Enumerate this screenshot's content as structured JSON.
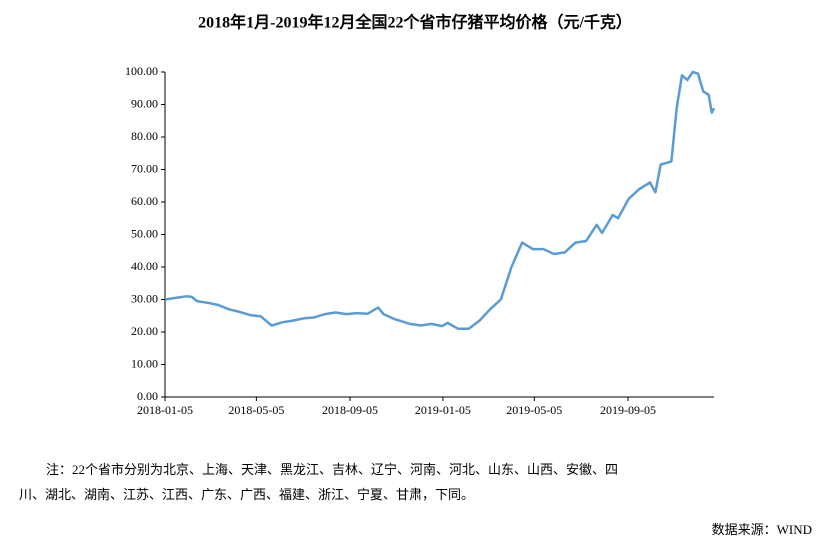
{
  "chart_data": {
    "type": "line",
    "title": "2018年1月-2019年12月全国22个省市仔猪平均价格（元/千克）",
    "x": [
      "2018-01-05",
      "2018-01-19",
      "2018-02-02",
      "2018-02-09",
      "2018-02-16",
      "2018-03-02",
      "2018-03-16",
      "2018-03-30",
      "2018-04-13",
      "2018-04-27",
      "2018-05-11",
      "2018-05-25",
      "2018-06-08",
      "2018-06-22",
      "2018-07-06",
      "2018-07-20",
      "2018-08-03",
      "2018-08-17",
      "2018-08-31",
      "2018-09-14",
      "2018-09-28",
      "2018-10-12",
      "2018-10-19",
      "2018-11-02",
      "2018-11-16",
      "2018-11-23",
      "2018-12-07",
      "2018-12-21",
      "2019-01-04",
      "2019-01-11",
      "2019-01-25",
      "2019-02-08",
      "2019-02-22",
      "2019-03-08",
      "2019-03-22",
      "2019-04-05",
      "2019-04-19",
      "2019-05-03",
      "2019-05-17",
      "2019-05-31",
      "2019-06-14",
      "2019-06-28",
      "2019-07-12",
      "2019-07-26",
      "2019-08-02",
      "2019-08-16",
      "2019-08-23",
      "2019-09-06",
      "2019-09-20",
      "2019-10-04",
      "2019-10-11",
      "2019-10-18",
      "2019-11-01",
      "2019-11-08",
      "2019-11-15",
      "2019-11-22",
      "2019-11-29",
      "2019-12-06",
      "2019-12-13",
      "2019-12-20",
      "2019-12-24",
      "2019-12-27"
    ],
    "series": [
      {
        "color": "#5b9bd5",
        "values": [
          30,
          30.5,
          31,
          30.8,
          29.5,
          29,
          28.3,
          27,
          26.2,
          25.2,
          24.8,
          22,
          23,
          23.5,
          24.2,
          24.5,
          25.5,
          26,
          25.5,
          25.8,
          25.6,
          27.5,
          25.5,
          24,
          23,
          22.5,
          22,
          22.5,
          21.8,
          22.8,
          21,
          21,
          23.5,
          27,
          30,
          40,
          47.5,
          45.5,
          45.5,
          44,
          44.5,
          47.5,
          48,
          53,
          50.5,
          56,
          55,
          61,
          64,
          66,
          63,
          71.5,
          72.5,
          89,
          99,
          97.5,
          100,
          99.5,
          94,
          93,
          87.5,
          88.8
        ]
      }
    ],
    "xlim": [
      "2018-01-05",
      "2019-12-27"
    ],
    "xticks": [
      "2018-01-05",
      "2018-05-05",
      "2018-09-05",
      "2019-01-05",
      "2019-05-05",
      "2019-09-05"
    ],
    "ylim": [
      0,
      100
    ],
    "yticks": [
      {
        "value": 0,
        "label": "0.00"
      },
      {
        "value": 10,
        "label": "10.00"
      },
      {
        "value": 20,
        "label": "20.00"
      },
      {
        "value": 30,
        "label": "30.00"
      },
      {
        "value": 40,
        "label": "40.00"
      },
      {
        "value": 50,
        "label": "50.00"
      },
      {
        "value": 60,
        "label": "60.00"
      },
      {
        "value": 70,
        "label": "70.00"
      },
      {
        "value": 80,
        "label": "80.00"
      },
      {
        "value": 90,
        "label": "90.00"
      },
      {
        "value": 100,
        "label": "100.00"
      }
    ],
    "note_line1": "注：22个省市分别为北京、上海、天津、黑龙江、吉林、辽宁、河南、河北、山东、山西、安徽、四",
    "note_line2": "川、湖北、湖南、江苏、江西、广东、广西、福建、浙江、宁夏、甘肃，下同。",
    "source": "数据来源：WIND"
  }
}
